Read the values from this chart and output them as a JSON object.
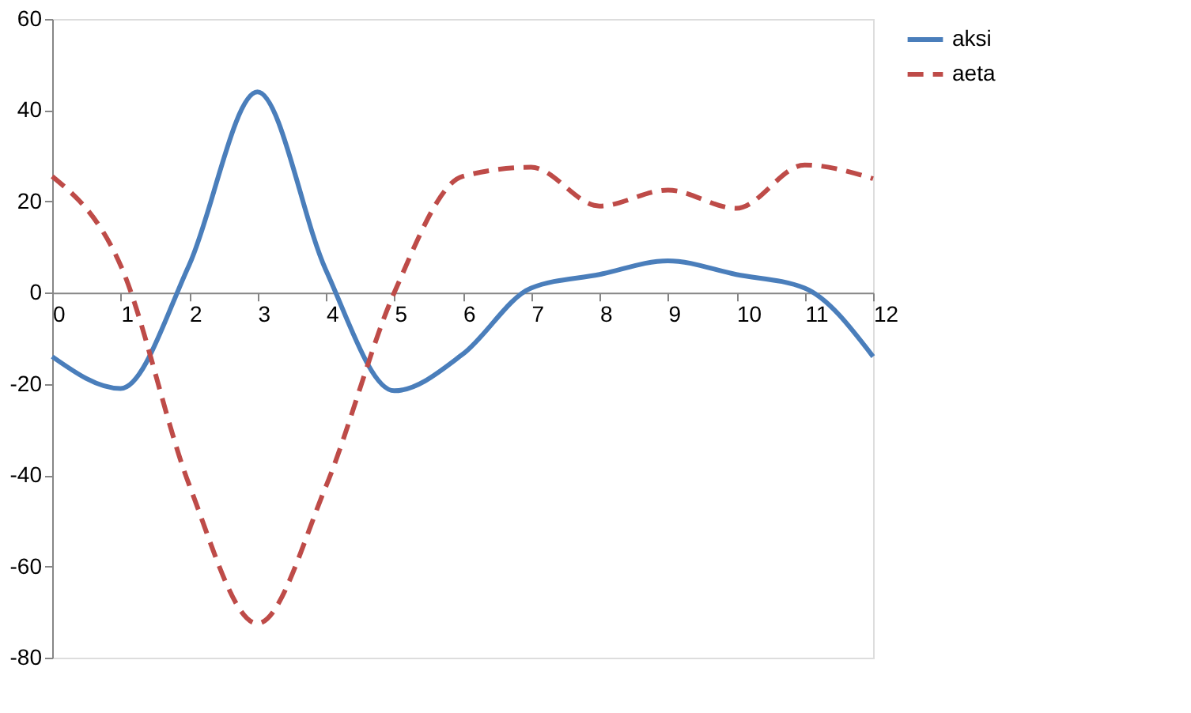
{
  "chart_data": {
    "type": "line",
    "x": [
      0,
      1,
      2,
      3,
      4,
      5,
      6,
      7,
      8,
      9,
      10,
      11,
      12
    ],
    "series": [
      {
        "name": "aksi",
        "color": "#4a7ebb",
        "line_style": "solid",
        "values": [
          -14,
          -21,
          6,
          44,
          5,
          -21.5,
          -13.5,
          1,
          4,
          7,
          4,
          1,
          -14
        ]
      },
      {
        "name": "aeta",
        "color": "#be4b48",
        "line_style": "dashed",
        "values": [
          25.5,
          6,
          -42,
          -72.5,
          -42.5,
          0,
          25.5,
          27.5,
          19,
          22.5,
          18.5,
          28,
          25
        ]
      }
    ],
    "xlim": [
      0,
      12
    ],
    "xticks": [
      0,
      1,
      2,
      3,
      4,
      5,
      6,
      7,
      8,
      9,
      10,
      11,
      12
    ],
    "ylim": [
      -80,
      60
    ],
    "yticks": [
      -80,
      -60,
      -40,
      -20,
      0,
      20,
      40,
      60
    ],
    "grid": false,
    "legend": "right",
    "marker": "none"
  }
}
